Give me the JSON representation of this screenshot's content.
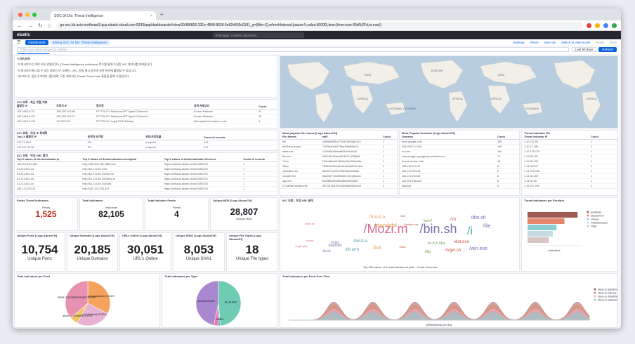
{
  "browser": {
    "tab_title": "SOC 0/i Dis: Threat Intelligence",
    "url": "go-sec.kb.asia-northeast3.gcp.elastic-cloud.com:9243/app/dashboards#/view/31486806-331e-4848-8636-5e62d430c0191_g=(filter:!(),refreshInterval:(pause:!t,value:60000),time:(from:now-90d%2Fd,to:now))"
  },
  "kibana": {
    "logo": "elastic",
    "search_placeholder": "Find apps, content, and more.",
    "crumbs": [
      "Dashboards",
      "Editing SOC 0/i Dis: Threat Intelligence"
    ],
    "top_actions": [
      "Settings",
      "Share",
      "Save as",
      "Switch to view mode",
      "Reset",
      "Save"
    ],
    "query_placeholder": "Filter your data using KQL syntax",
    "date_range": "Last 90 days",
    "refresh_label": "Refresh",
    "controls": [
      "Create visualization",
      "Add panel",
      "Add from library",
      "Controls"
    ]
  },
  "markdown": {
    "title": "TI 대시보드",
    "lines": [
      "이 대시보드는 여러 오픈 인텔리전스 (Threat Intelligence Indicators) 피드를 통해 수집된 IOC 데이터를 보여줍니다.",
      "이 대시보드에서 볼 수 있는 정보는 IP, 도메인, URL, 파일 해시 등이며 보안 분석에 활용할 수 있습니다.",
      "대시보드는 일정 주기마다 갱신되며, 모든 데이터는 Elastic Threat Intel 통합을 통해 수집됩니다."
    ]
  },
  "ioc_table": {
    "title": "IOC 조회 - 최근 위협 지표",
    "headers": [
      "출발지 IP",
      "도착지 IP",
      "탐지된",
      "공격 카테고리",
      "Count"
    ],
    "rows": [
      [
        "192.168.10.111",
        "185.220.100.88",
        "ET POLICY Malicious APT Agent Outbound",
        "Known Malware",
        "47"
      ],
      [
        "192.168.10.112",
        "185.220.101.12",
        "ET POLICY Malicious APT Agent Outbound",
        "Known Malware",
        "31"
      ],
      [
        "192.168.10.113",
        "13.253.0.11",
        "ET POLICY Log4j RCE Attempt",
        "Attempted Information Leak",
        "6"
      ]
    ]
  },
  "maps": {
    "labels": [
      "AFRICA",
      "OCEANIA",
      "ASIA",
      "EUROPE",
      "AFRICA",
      "OCEANIA",
      "ASIA",
      "AFRICA",
      "OCEANIA",
      "AFRICA"
    ]
  },
  "ip_table": {
    "title": "IOC 조회 - 악성 IP 트래픽",
    "headers": [
      "Top 10 출발지 IP",
      "공격자 국가명",
      "포트/프로토콜",
      "Count of records"
    ],
    "rows": [
      [
        "213.77.45.6",
        "0%",
        "endpoint",
        "412"
      ],
      [
        "213.227.43.98",
        "0%",
        "endpoint",
        "412"
      ]
    ]
  },
  "url_table": {
    "title": "IOC 조회 - 악성 URL 탐지",
    "headers": [
      "Top 5 values of threat.indicator.ip",
      "Top 5 values of threat.indicator.url.original",
      "Top 5 values of threat.indicator.reference",
      "Count of records"
    ],
    "rows": [
      [
        "185.209.161.188",
        "http://185.209.161.188/mozi",
        "https://urlhaus.abuse.ch/url/2485719/",
        "1"
      ],
      [
        "61.211.65.144",
        "http://61.211.65.144/i",
        "https://urlhaus.abuse.ch/url/2485720/",
        "1"
      ],
      [
        "61.211.65.144",
        "http://61.211.65.144/bin.sh",
        "https://urlhaus.abuse.ch/url/2485721/",
        "1"
      ],
      [
        "61.211.65.144",
        "http://61.211.65.144/Mozi.m",
        "https://urlhaus.abuse.ch/url/2485722/",
        "1"
      ],
      [
        "61.211.65.144",
        "http://61.211.65.144/x86",
        "https://urlhaus.abuse.ch/url/2485723/",
        "1"
      ],
      [
        "182.123.203.42",
        "http://182.123.203.42/i",
        "https://urlhaus.abuse.ch/url/2485724/",
        "1"
      ]
    ]
  },
  "files_table": {
    "title": "Most popular file names [Logs AbuseCH]",
    "headers": [
      "File Names",
      "md5",
      "Count"
    ],
    "rows": [
      [
        "file",
        "4b4bbbb8f1a47f1f416bf0a82414",
        "1"
      ],
      [
        "file/Sahm.e.exe",
        "7b97fa4b9f4179bd19bb6b6111",
        "1"
      ],
      [
        "mata.exe",
        "1004964af1fea8f841fa1df1a2",
        "1"
      ],
      [
        "file.exe",
        "9891401904ef4491871a7386b8",
        "1"
      ],
      [
        "7.exe",
        "2b3c4d5e6f7a8b9c0d1e2f3a4b5c",
        "1"
      ],
      [
        "SB.js",
        "78434046bb48e1b1a0a6f17bc4ba",
        "1"
      ],
      [
        "Quotation.xls",
        "8ac9e7c1d2b07f6e3d0a95f896",
        "1"
      ],
      [
        "Update.exe",
        "dbae5477d1b94b4b7ebe4b5a0a",
        "1"
      ],
      [
        "app.exe",
        "801f38f3d9f4b9c8b8e6f02a5e",
        "1"
      ],
      [
        "2 (Sahifa) stealer.exe",
        "48711125d1f1234e60df098e0e2f",
        "1"
      ]
    ]
  },
  "domains_table": {
    "title": "Most Popular Domains [Logs AbuseCH]",
    "headers": [
      "Domains",
      "Count"
    ],
    "rows": [
      [
        "drive.google.com",
        "189"
      ],
      [
        "205.209.174.163",
        "195"
      ],
      [
        "xn.com",
        "184"
      ],
      [
        "www.images.googleusercontent.com",
        "17"
      ],
      [
        "brand-version.club",
        "18"
      ],
      [
        "185.215.113.43",
        "8"
      ],
      [
        "180.124.223.18",
        "6"
      ],
      [
        "162.210.193.46",
        "6"
      ],
      [
        "142.202.188.242",
        "6"
      ],
      [
        "digit.top",
        "6"
      ]
    ]
  },
  "tip_table": {
    "title": "Threat Indicator IPs",
    "headers": [
      "Threat Indicator IP",
      "Count"
    ],
    "rows": [
      [
        "1.10.132.54",
        "1"
      ],
      [
        "1.10.17.185",
        "1"
      ],
      [
        "1.10.175.175",
        "1"
      ],
      [
        "1.10.83.100",
        "1"
      ],
      [
        "1.10.83.120",
        "1"
      ],
      [
        "1.14.203.17",
        "1"
      ],
      [
        "1.14.219.108",
        "1"
      ],
      [
        "1.14.34.200",
        "1"
      ],
      [
        "1.14.52.89",
        "1"
      ],
      [
        "1.15.247.249",
        "1"
      ]
    ]
  },
  "metrics_row1": [
    {
      "title": "Feeds Threat Indicators",
      "label": "Feeds",
      "value": "1,525",
      "color": "#bd271e"
    },
    {
      "title": "Total Indicators",
      "label": "Indicators",
      "value": "82,105",
      "color": "#1a1c21"
    },
    {
      "title": "Total Indicator Feeds",
      "label": "Feeds",
      "value": "4",
      "color": "#1a1c21"
    },
    {
      "title": "Unique MD5 [Logs AbuseCH]",
      "label": "Unique MD5",
      "value": "28,807",
      "color": "#1a1c21"
    }
  ],
  "metrics_row2": [
    {
      "title": "Unique Ports [Logs AbuseCH]",
      "label": "Unique Ports",
      "value": "10,754"
    },
    {
      "title": "Unique Domains [Logs AbuseCH]",
      "label": "Unique Domains",
      "value": "20,185"
    },
    {
      "title": "URLs Online [Logs AbuseCH]",
      "label": "URL's Online",
      "value": "30,051"
    },
    {
      "title": "Unique SHA1 [Logs AbuseCH]",
      "label": "Unique SHA1",
      "value": "8,053"
    },
    {
      "title": "Unique File Types [Logs AbuseCH]",
      "label": "Unique File types",
      "value": "18"
    }
  ],
  "wordcloud": {
    "title": "IOC 조회 - 악성 URL 분석",
    "caption": "Top 100 values of threat.indicator.url.path - Count of records",
    "words": [
      "/Mozi.m",
      "/bin.sh",
      "/i",
      "/mozi.a",
      "/x86",
      "/arm7",
      "/sh",
      "/dot.sh",
      "/bins.sh",
      "/mips",
      "/Mozi.a",
      "/download",
      "/update.exe",
      "/m-8.4-Sha",
      "/dot.exe",
      "/file",
      "/login.php",
      "/w.sh",
      "/dlr.arm",
      "/bot",
      "/jaws",
      "/tftp",
      "/wget.sh",
      "/win.exe",
      "/check",
      "/payload"
    ]
  },
  "bar_panel": {
    "title": "Threat Indicators per Provider",
    "xlabel": "Indicators",
    "legend": [
      "ipaddress",
      "abusechmw",
      "urlhaus",
      "malwarebazaar",
      "Other"
    ],
    "colors": [
      "#a05a54",
      "#e8866b",
      "#8bcfd2",
      "#c4dce4",
      "#d8c6c2"
    ]
  },
  "pie1": {
    "title": "Total Indicators per Feed",
    "labels": [
      "abuse.ch (ipaddress) 32.65%",
      "abuse.ch (urlhaus) 25.02%",
      "abuse.ch (threatfox) 5.87%",
      "abuse.ch (malwarebazaar) 36.46%"
    ],
    "values": [
      32.65,
      25.02,
      5.87,
      36.46
    ],
    "colors": [
      "#f5a35c",
      "#e7b2d3",
      "#f0c75e",
      "#e891b1"
    ]
  },
  "pie2": {
    "title": "Total Indicators per Type",
    "labels": [
      "file 48.66%",
      "ip 1.77%",
      "url 2.88%",
      "domain 46.69%"
    ],
    "values": [
      48.66,
      1.77,
      2.88,
      46.69
    ],
    "colors": [
      "#6dccb1",
      "#79aad9",
      "#ee789d",
      "#a987d1"
    ]
  },
  "area_panel": {
    "title": "Total Indicators per Feed Over Time",
    "xlabel": "@timestamp per day",
    "legend": [
      "abuse.ch (ipaddress)",
      "abuse.ch (urlhaus)",
      "abuse.ch (threatfox)",
      "abuse.ch (malwarebazaar)"
    ],
    "colors": [
      "#a05a54",
      "#e8866b",
      "#e7b2d3",
      "#8bcfd2"
    ]
  }
}
